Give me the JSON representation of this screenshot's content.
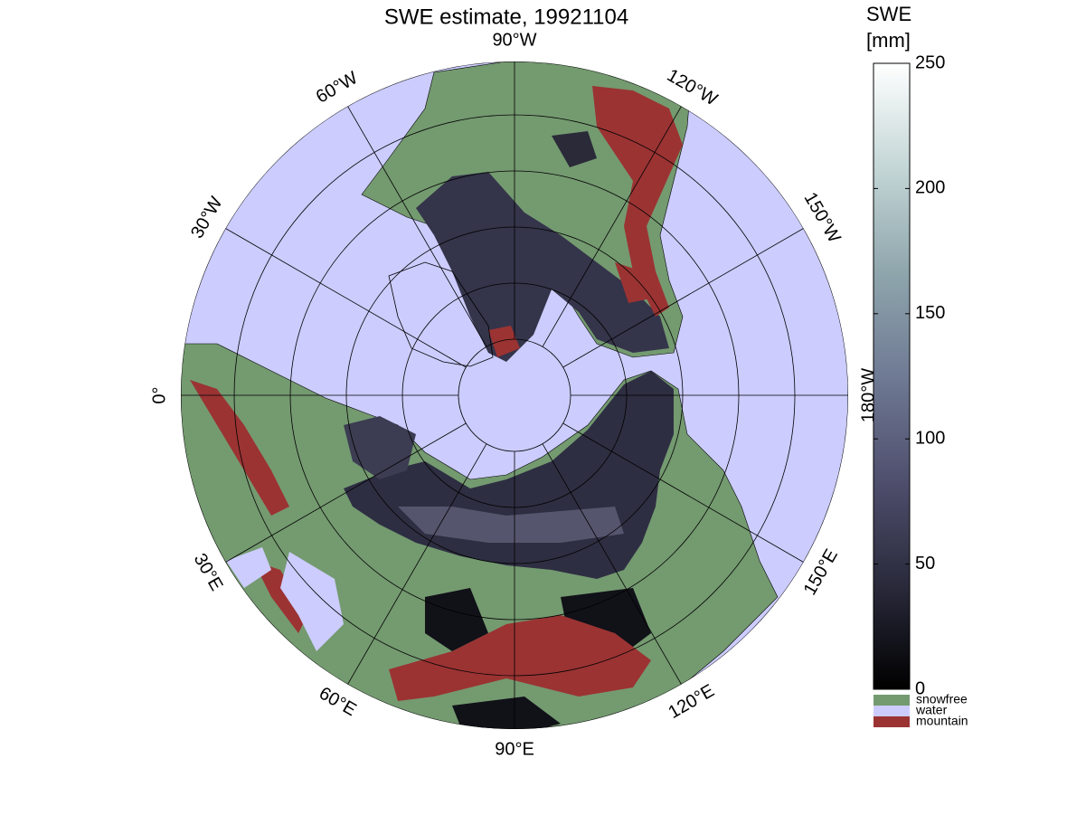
{
  "chart_data": {
    "type": "map",
    "title": "SWE estimate, 19921104",
    "colorbar": {
      "label_lines": [
        "SWE",
        "[mm]"
      ],
      "lim": [
        0,
        250
      ],
      "ticks": [
        0,
        50,
        100,
        150,
        200,
        250
      ],
      "colors": [
        "#000000",
        "#2a2a3c",
        "#4f4f6e",
        "#6f7a94",
        "#8fa6ad",
        "#c4d6d6",
        "#ffffff"
      ]
    },
    "legend": [
      {
        "name": "snowfree",
        "color": "#749a70"
      },
      {
        "name": "water",
        "color": "#ccccff"
      },
      {
        "name": "mountain",
        "color": "#9b3333"
      }
    ],
    "longitude_labels": [
      "0°",
      "30°E",
      "60°E",
      "90°E",
      "120°E",
      "150°E",
      "180°W",
      "150°W",
      "120°W",
      "90°W",
      "60°W",
      "30°W"
    ]
  }
}
